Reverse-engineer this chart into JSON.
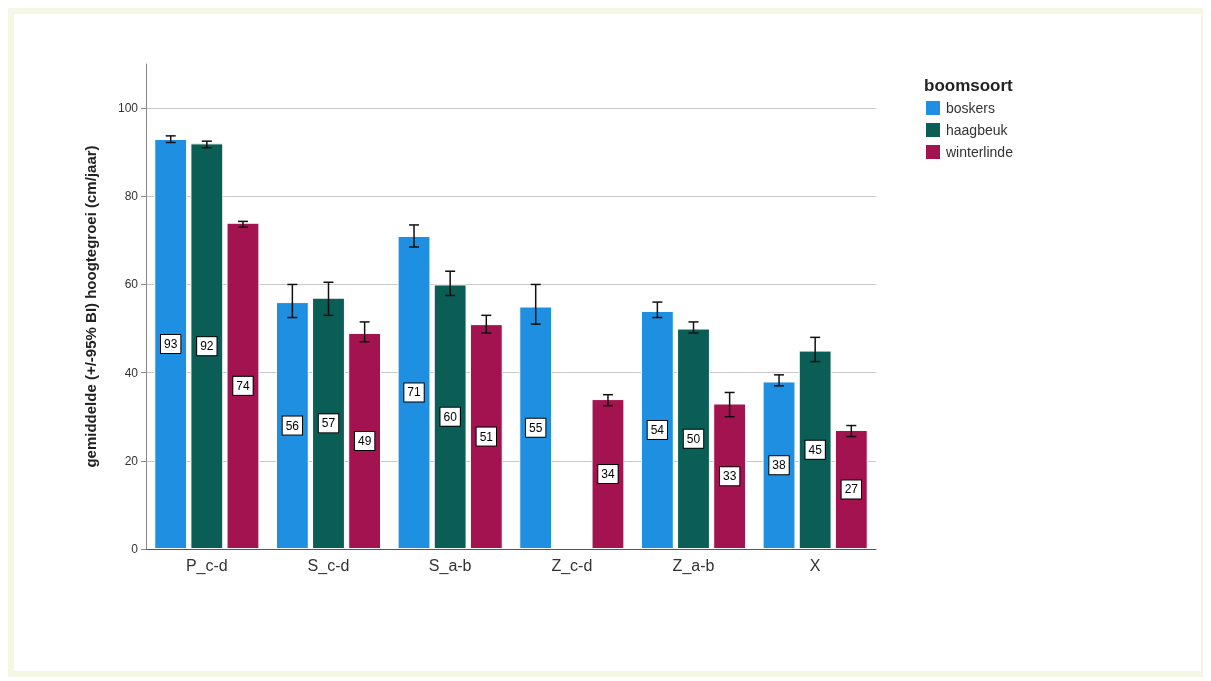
{
  "chart_data": {
    "type": "bar",
    "ylabel": "gemiddelde (+/-95% BI) hoogtegroei (cm/jaar)",
    "legend_title": "boomsoort",
    "categories": [
      "P_c-d",
      "S_c-d",
      "S_a-b",
      "Z_c-d",
      "Z_a-b",
      "X"
    ],
    "series": [
      {
        "name": "boskers",
        "color": "#1e8fe1",
        "values": [
          93,
          56,
          71,
          55,
          54,
          38
        ],
        "errors": [
          [
            92.2,
            93.7
          ],
          [
            52.5,
            60
          ],
          [
            68.5,
            73.5
          ],
          [
            51,
            60
          ],
          [
            52.5,
            56
          ],
          [
            37,
            39.5
          ]
        ]
      },
      {
        "name": "haagbeuk",
        "color": "#0b5e55",
        "values": [
          92,
          57,
          60,
          null,
          50,
          45
        ],
        "errors": [
          [
            91,
            92.5
          ],
          [
            53,
            60.5
          ],
          [
            57.5,
            63
          ],
          null,
          [
            49,
            51.5
          ],
          [
            42.5,
            48
          ]
        ]
      },
      {
        "name": "winterlinde",
        "color": "#a3134f",
        "values": [
          74,
          49,
          51,
          34,
          33,
          27
        ],
        "errors": [
          [
            73,
            74.3
          ],
          [
            47,
            51.5
          ],
          [
            49,
            53
          ],
          [
            32.5,
            35
          ],
          [
            30,
            35.5
          ],
          [
            25.5,
            28
          ]
        ]
      }
    ],
    "ylim": [
      0,
      110
    ],
    "yticks": [
      0,
      20,
      40,
      60,
      80,
      100
    ],
    "grid": "y",
    "legend": "top right",
    "data_labels": true
  }
}
